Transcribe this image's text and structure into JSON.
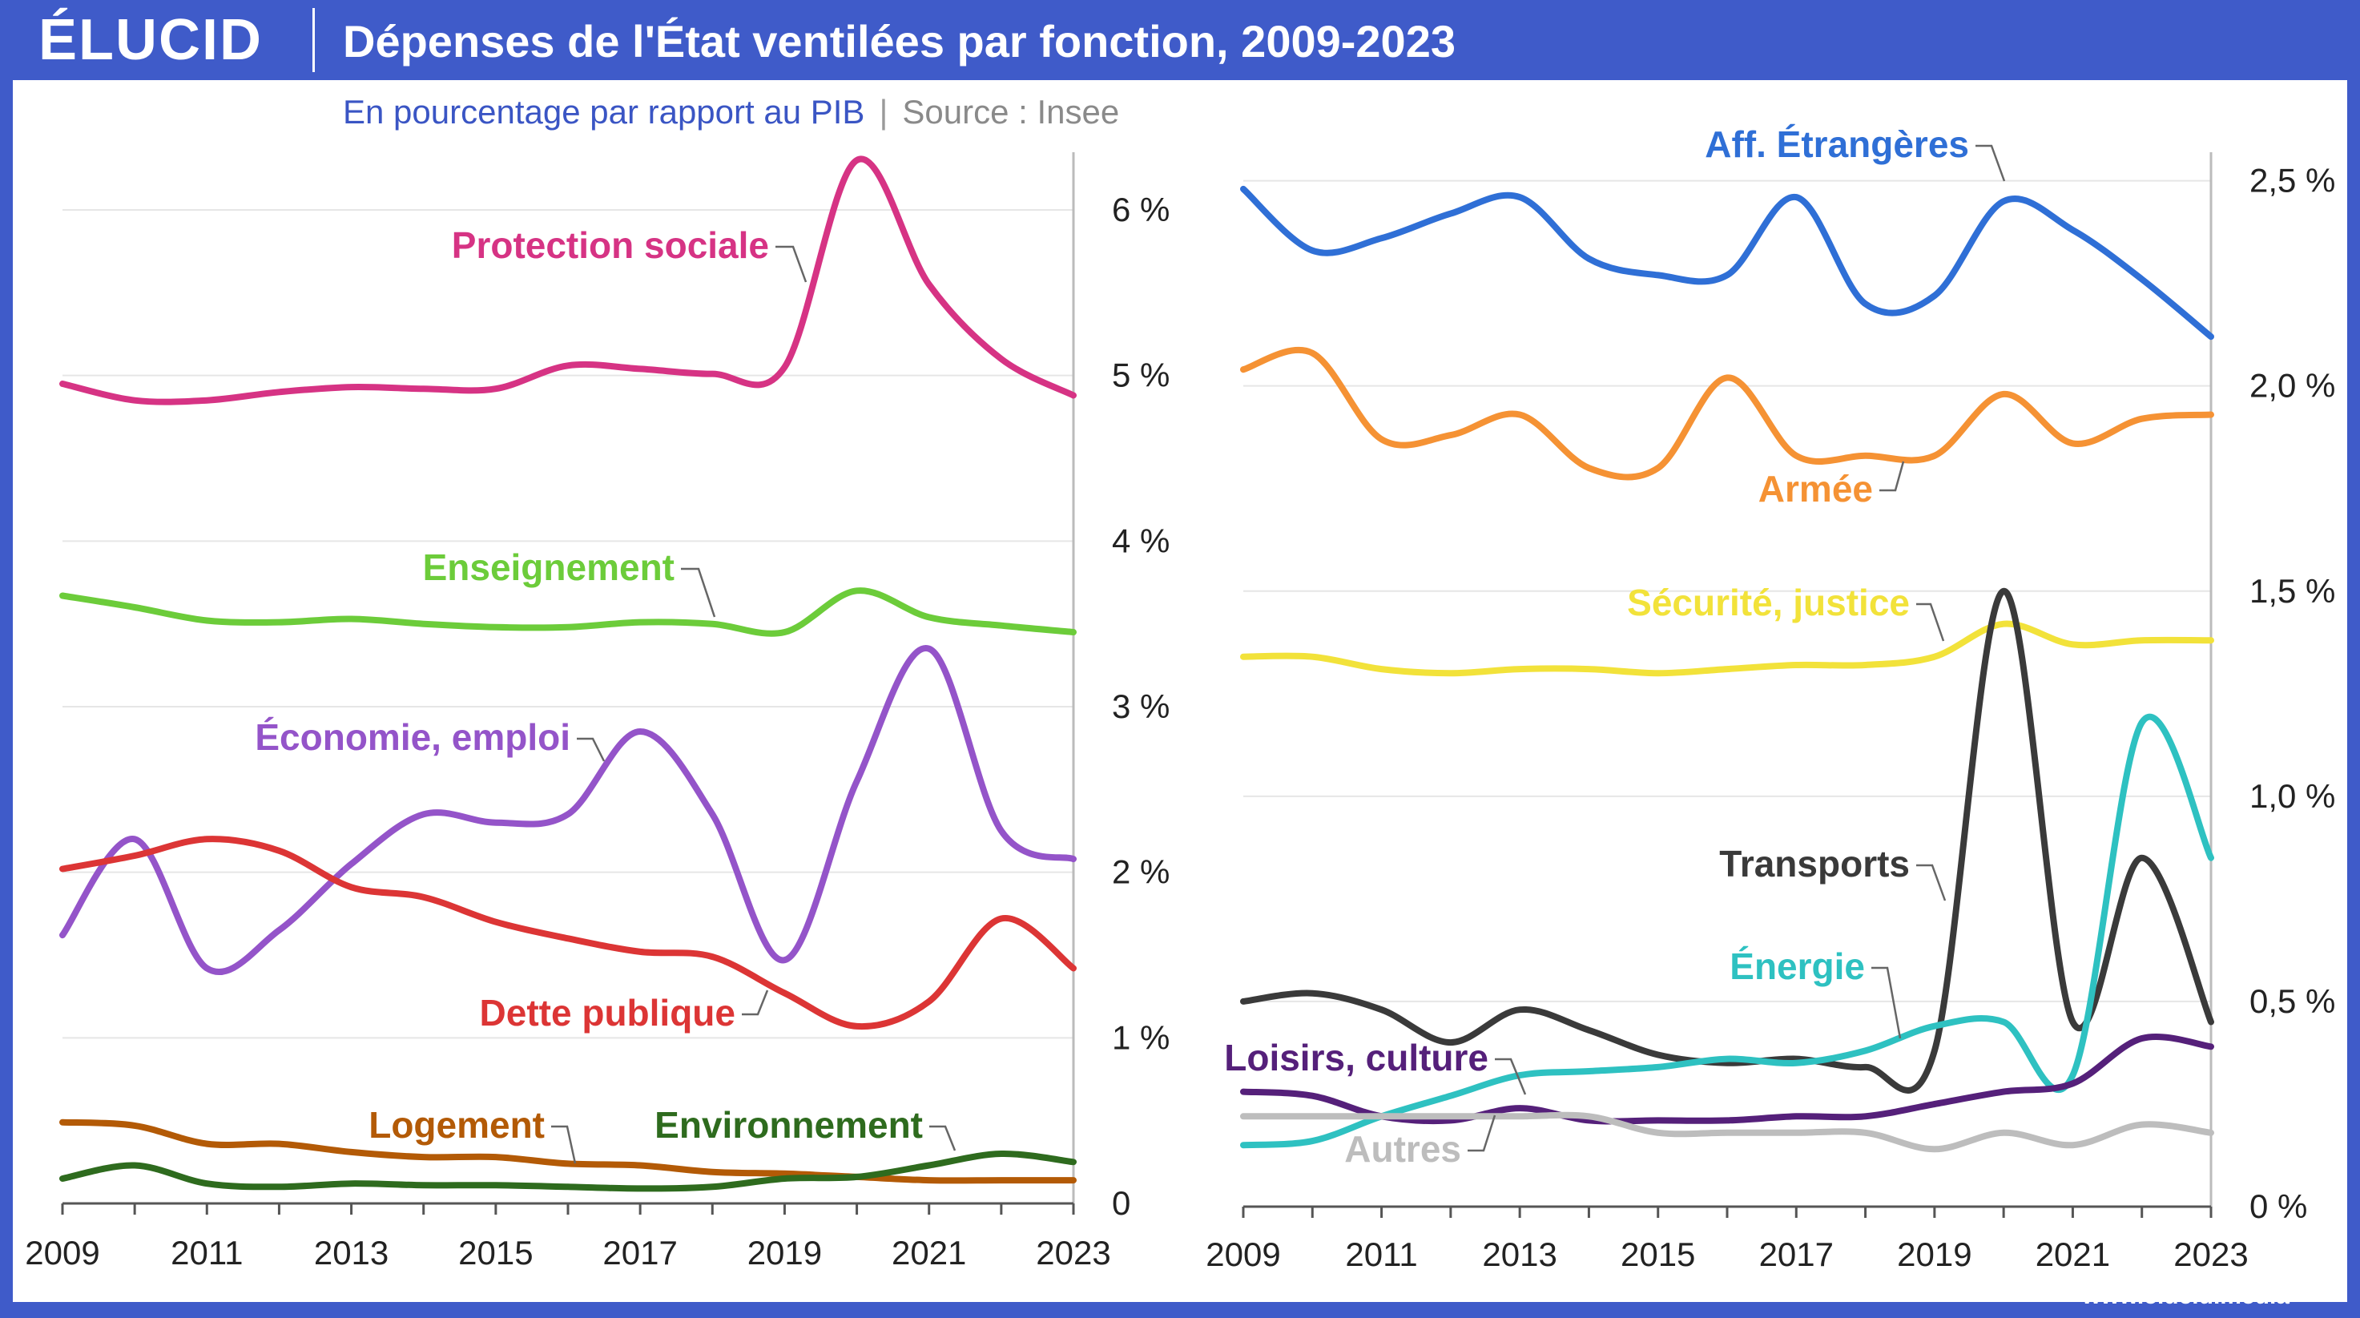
{
  "header": {
    "logo": "ÉLUCID",
    "title": "Dépenses de l'État ventilées par fonction, 2009-2023",
    "subtitle": "En pourcentage par rapport au PIB",
    "subtitle_sep": "|",
    "source": "Source : Insee"
  },
  "footer": {
    "url": "www.elucid.media"
  },
  "colors": {
    "frame": "#3f5bc9",
    "protection_sociale": "#d63384",
    "enseignement": "#6ccc3a",
    "economie_emploi": "#9454c9",
    "dette_publique": "#dc3535",
    "logement": "#b35a06",
    "environnement": "#2e6b1e",
    "aff_etrangeres": "#2f6fd6",
    "armee": "#f59234",
    "securite_justice": "#f2e23a",
    "transports": "#3a3a3a",
    "energie": "#2ec1c1",
    "loisirs_culture": "#55207a",
    "autres": "#bdbdbd"
  },
  "chart_data": [
    {
      "type": "line",
      "x": [
        2009,
        2010,
        2011,
        2012,
        2013,
        2014,
        2015,
        2016,
        2017,
        2018,
        2019,
        2020,
        2021,
        2022,
        2023
      ],
      "x_ticks": [
        "2009",
        "2011",
        "2013",
        "2015",
        "2017",
        "2019",
        "2021",
        "2023"
      ],
      "ylim": [
        0,
        6.3
      ],
      "y_ticks": [
        "0",
        "1 %",
        "2 %",
        "3 %",
        "4 %",
        "5 %",
        "6 %"
      ],
      "y_tick_values": [
        0,
        1,
        2,
        3,
        4,
        5,
        6
      ],
      "y_axis_side": "right",
      "grid": true,
      "series": [
        {
          "name": "Protection sociale",
          "color_key": "protection_sociale",
          "values": [
            4.95,
            4.85,
            4.85,
            4.9,
            4.93,
            4.92,
            4.92,
            5.06,
            5.04,
            5.01,
            5.05,
            6.3,
            5.55,
            5.1,
            4.88
          ]
        },
        {
          "name": "Enseignement",
          "color_key": "enseignement",
          "values": [
            3.67,
            3.6,
            3.52,
            3.51,
            3.53,
            3.5,
            3.48,
            3.48,
            3.51,
            3.5,
            3.45,
            3.7,
            3.54,
            3.49,
            3.45
          ]
        },
        {
          "name": "Économie, emploi",
          "color_key": "economie_emploi",
          "values": [
            1.62,
            2.2,
            1.42,
            1.65,
            2.05,
            2.35,
            2.3,
            2.35,
            2.85,
            2.35,
            1.47,
            2.55,
            3.35,
            2.25,
            2.08
          ]
        },
        {
          "name": "Dette publique",
          "color_key": "dette_publique",
          "values": [
            2.02,
            2.1,
            2.2,
            2.13,
            1.91,
            1.85,
            1.7,
            1.6,
            1.52,
            1.49,
            1.27,
            1.07,
            1.22,
            1.72,
            1.42
          ]
        },
        {
          "name": "Logement",
          "color_key": "logement",
          "values": [
            0.49,
            0.47,
            0.36,
            0.36,
            0.31,
            0.28,
            0.28,
            0.24,
            0.23,
            0.19,
            0.18,
            0.16,
            0.14,
            0.14,
            0.14
          ]
        },
        {
          "name": "Environnement",
          "color_key": "environnement",
          "values": [
            0.15,
            0.23,
            0.12,
            0.1,
            0.12,
            0.11,
            0.11,
            0.1,
            0.09,
            0.1,
            0.15,
            0.16,
            0.23,
            0.3,
            0.25
          ]
        }
      ]
    },
    {
      "type": "line",
      "x": [
        2009,
        2010,
        2011,
        2012,
        2013,
        2014,
        2015,
        2016,
        2017,
        2018,
        2019,
        2020,
        2021,
        2022,
        2023
      ],
      "x_ticks": [
        "2009",
        "2011",
        "2013",
        "2015",
        "2017",
        "2019",
        "2021",
        "2023"
      ],
      "ylim": [
        0,
        2.55
      ],
      "y_ticks": [
        "0 %",
        "0,5 %",
        "1,0 %",
        "1,5 %",
        "2,0 %",
        "2,5 %"
      ],
      "y_tick_values": [
        0,
        0.5,
        1.0,
        1.5,
        2.0,
        2.5
      ],
      "y_axis_side": "right",
      "grid": true,
      "series": [
        {
          "name": "Aff. Étrangères",
          "color_key": "aff_etrangeres",
          "values": [
            2.48,
            2.33,
            2.36,
            2.42,
            2.46,
            2.31,
            2.27,
            2.27,
            2.46,
            2.2,
            2.22,
            2.45,
            2.38,
            2.26,
            2.12
          ]
        },
        {
          "name": "Armée",
          "color_key": "armee",
          "values": [
            2.04,
            2.08,
            1.87,
            1.88,
            1.93,
            1.8,
            1.8,
            2.02,
            1.83,
            1.83,
            1.83,
            1.98,
            1.86,
            1.92,
            1.93
          ]
        },
        {
          "name": "Sécurité, justice",
          "color_key": "securite_justice",
          "values": [
            1.34,
            1.34,
            1.31,
            1.3,
            1.31,
            1.31,
            1.3,
            1.31,
            1.32,
            1.32,
            1.34,
            1.42,
            1.37,
            1.38,
            1.38
          ]
        },
        {
          "name": "Transports",
          "color_key": "transports",
          "values": [
            0.5,
            0.52,
            0.48,
            0.4,
            0.48,
            0.43,
            0.37,
            0.35,
            0.36,
            0.34,
            0.38,
            1.5,
            0.45,
            0.85,
            0.45
          ]
        },
        {
          "name": "Énergie",
          "color_key": "energie",
          "values": [
            0.15,
            0.16,
            0.22,
            0.27,
            0.32,
            0.33,
            0.34,
            0.36,
            0.35,
            0.38,
            0.44,
            0.45,
            0.32,
            1.18,
            0.85
          ]
        },
        {
          "name": "Loisirs, culture",
          "color_key": "loisirs_culture",
          "values": [
            0.28,
            0.27,
            0.22,
            0.21,
            0.24,
            0.21,
            0.21,
            0.21,
            0.22,
            0.22,
            0.25,
            0.28,
            0.3,
            0.41,
            0.39
          ]
        },
        {
          "name": "Autres",
          "color_key": "autres",
          "values": [
            0.22,
            0.22,
            0.22,
            0.22,
            0.22,
            0.22,
            0.18,
            0.18,
            0.18,
            0.18,
            0.14,
            0.18,
            0.15,
            0.2,
            0.18
          ]
        }
      ]
    }
  ]
}
